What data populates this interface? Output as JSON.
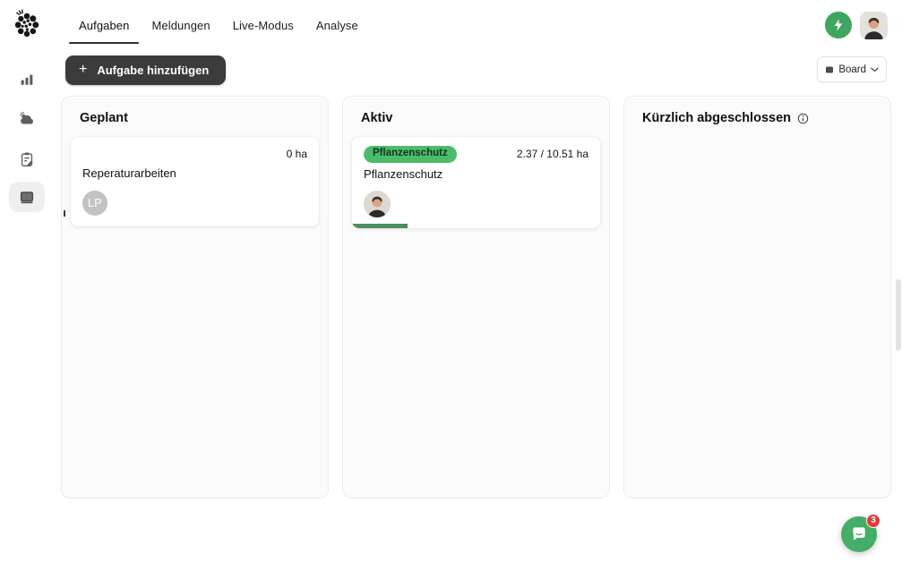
{
  "header": {
    "logo": "vineyard-cluster-logo",
    "tabs": [
      {
        "label": "Aufgaben",
        "active": true
      },
      {
        "label": "Meldungen",
        "active": false
      },
      {
        "label": "Live-Modus",
        "active": false
      },
      {
        "label": "Analyse",
        "active": false
      }
    ],
    "quick_action_icon": "lightning-bolt",
    "user_avatar": "profile-photo"
  },
  "sidebar": {
    "items": [
      {
        "icon": "bar-chart-icon",
        "selected": false
      },
      {
        "icon": "weather-icon",
        "selected": false
      },
      {
        "icon": "field-records-icon",
        "selected": false
      },
      {
        "icon": "board-icon",
        "selected": true
      }
    ]
  },
  "toolbar": {
    "plus_glyph": "+",
    "add_task_label": "Aufgabe hinzufügen",
    "view_select": {
      "value": "Board",
      "icon": "board-view-icon",
      "chevron": "chevron-down-icon"
    }
  },
  "board": {
    "columns": [
      {
        "title": "Geplant",
        "cards": [
          {
            "area": "0 ha",
            "title": "Reperaturarbeiten",
            "assignee_initials": "LP"
          }
        ]
      },
      {
        "title": "Aktiv",
        "cards": [
          {
            "badge": "Pflanzenschutz",
            "area": "2.37 / 10.51 ha",
            "title": "Pflanzenschutz",
            "assignee": "profile-photo",
            "progress_percent": 22.5
          }
        ]
      },
      {
        "title": "Kürzlich abgeschlossen",
        "info_icon": "info-circle",
        "cards": []
      }
    ]
  },
  "chat": {
    "icon": "chat-bubble",
    "badge_count": "3"
  },
  "colors": {
    "accent_green": "#3fa55f",
    "badge_green": "#4cbb6c",
    "progress_green": "#4e8d62",
    "chat_green": "#44ae68",
    "notification_red": "#e53935",
    "dark_button": "#3b3b3b"
  }
}
